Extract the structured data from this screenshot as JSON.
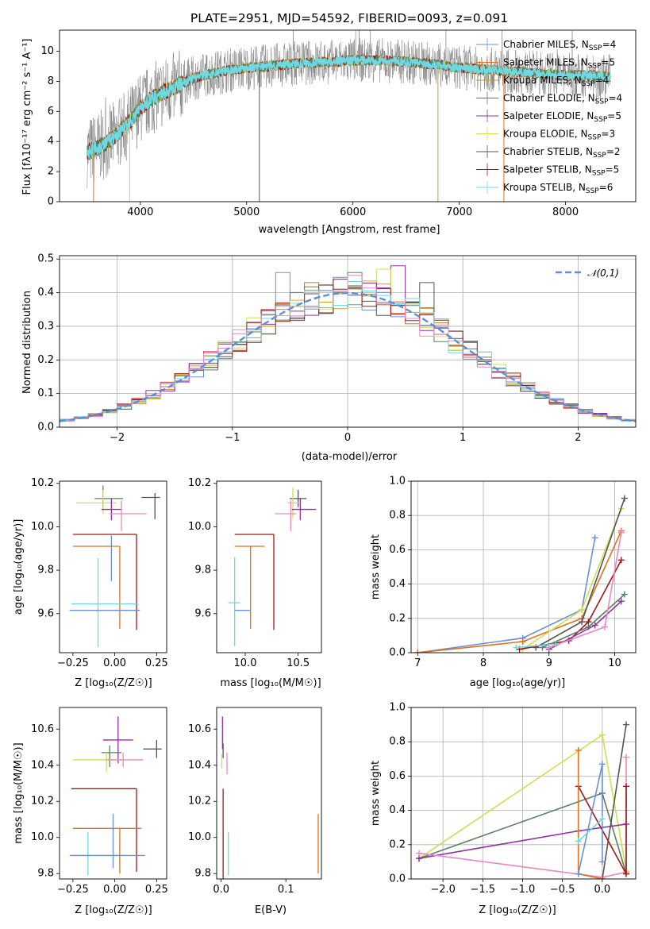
{
  "colors": {
    "Chabrier MILES": "#6b8fd4",
    "Salpeter MILES": "#e0701e",
    "Kroupa MILES": "#c8a020",
    "Chabrier ELODIE": "#5a8060",
    "Salpeter ELODIE": "#9030a8",
    "Kroupa ELODIE": "#cce050",
    "Chabrier STELIB": "#555555",
    "Salpeter STELIB": "#a01818",
    "Kroupa STELIB": "#70d8e0",
    "Pink": "#e888c0",
    "Gaussian": "#5b8fdb"
  },
  "chart_data": [
    {
      "id": "spectrum",
      "type": "line",
      "title": "PLATE=2951, MJD=54592, FIBERID=0093, z=0.091",
      "xlabel": "wavelength [Angstrom, rest frame]",
      "ylabel": "Flux [fλ10⁻¹⁷ erg cm⁻² s⁻¹ A⁻¹]",
      "xlim": [
        3240,
        8660
      ],
      "ylim": [
        0,
        11.4
      ],
      "xticks": [
        "4000",
        "5000",
        "6000",
        "7000",
        "8000"
      ],
      "yticks": [
        "0",
        "2",
        "4",
        "6",
        "8",
        "10"
      ],
      "continuum": {
        "x": [
          3500,
          3600,
          3700,
          3800,
          3900,
          4000,
          4100,
          4200,
          4300,
          4400,
          4500,
          4600,
          4800,
          5000,
          5200,
          5500,
          5800,
          6000,
          6200,
          6500,
          6800,
          7000,
          7200,
          7400,
          7600,
          7800,
          8000,
          8200,
          8400
        ],
        "y": [
          3.3,
          3.6,
          4.0,
          4.6,
          5.3,
          6.2,
          6.8,
          7.2,
          7.5,
          7.9,
          8.2,
          8.4,
          8.7,
          8.9,
          9.0,
          9.2,
          9.3,
          9.4,
          9.4,
          9.3,
          9.1,
          8.9,
          8.8,
          8.7,
          8.6,
          8.5,
          8.4,
          8.4,
          8.3
        ]
      },
      "legend_position": "right",
      "legend": [
        {
          "name": "Chabrier MILES, N_SSP=4",
          "label": "Chabrier MILES, N",
          "sub": "SSP",
          "tail": "=4",
          "color": "Chabrier MILES"
        },
        {
          "name": "Salpeter MILES, N_SSP=5",
          "label": "Salpeter MILES, N",
          "sub": "SSP",
          "tail": "=5",
          "color": "Salpeter MILES"
        },
        {
          "name": "Kroupa MILES, N_SSP=4",
          "label": "Kroupa MILES, N",
          "sub": "SSP",
          "tail": "=4",
          "color": "Kroupa MILES"
        },
        {
          "name": "Chabrier ELODIE, N_SSP=4",
          "label": "Chabrier ELODIE, N",
          "sub": "SSP",
          "tail": "=4",
          "color": "Chabrier ELODIE"
        },
        {
          "name": "Salpeter ELODIE, N_SSP=5",
          "label": "Salpeter ELODIE, N",
          "sub": "SSP",
          "tail": "=5",
          "color": "Salpeter ELODIE"
        },
        {
          "name": "Kroupa ELODIE, N_SSP=3",
          "label": "Kroupa ELODIE, N",
          "sub": "SSP",
          "tail": "=3",
          "color": "Kroupa ELODIE"
        },
        {
          "name": "Chabrier STELIB, N_SSP=2",
          "label": "Chabrier STELIB, N",
          "sub": "SSP",
          "tail": "=2",
          "color": "Chabrier STELIB"
        },
        {
          "name": "Salpeter STELIB, N_SSP=5",
          "label": "Salpeter STELIB, N",
          "sub": "SSP",
          "tail": "=5",
          "color": "Salpeter STELIB"
        },
        {
          "name": "Kroupa STELIB, N_SSP=6",
          "label": "Kroupa STELIB, N",
          "sub": "SSP",
          "tail": "=6",
          "color": "Kroupa STELIB"
        }
      ]
    },
    {
      "id": "residuals",
      "type": "bar",
      "xlabel": "(data-model)/error",
      "ylabel": "Normed distribution",
      "xlim": [
        -2.5,
        2.5
      ],
      "ylim": [
        0,
        0.51
      ],
      "xticks": [
        "−2",
        "−1",
        "0",
        "1",
        "2"
      ],
      "yticks": [
        "0.0",
        "0.1",
        "0.2",
        "0.3",
        "0.4",
        "0.5"
      ],
      "grid": true,
      "legend": [
        {
          "name": "𝒩(0,1)",
          "color": "Gaussian",
          "style": "dashed"
        }
      ],
      "bin_width": 0.125,
      "bin_start": -2.5,
      "peak_values": [
        0.46,
        0.43,
        0.41,
        0.46,
        0.48,
        0.47,
        0.43
      ],
      "peak_bins": [
        -0.625,
        -0.375,
        -0.125,
        0.0,
        0.375,
        0.25,
        0.625
      ]
    },
    {
      "id": "age-vs-Z",
      "type": "scatter",
      "xlabel": "Z [log₁₀(Z/Z☉)]",
      "ylabel": "age  [log₁₀(age/yr)]",
      "xlim": [
        -0.33,
        0.31
      ],
      "ylim": [
        9.42,
        10.21
      ],
      "xticks": [
        "−0.25",
        "0.00",
        "0.25"
      ],
      "yticks": [
        "9.6",
        "9.8",
        "10.0",
        "10.2"
      ],
      "points": [
        {
          "color": "Chabrier STELIB",
          "x": 0.24,
          "y": 10.135,
          "xerr": [
            0.08,
            0.03
          ],
          "yerr": [
            0.1,
            0.02
          ]
        },
        {
          "color": "Chabrier ELODIE",
          "x": -0.07,
          "y": 10.13,
          "xerr": [
            0.05,
            0.12
          ],
          "yerr": [
            0.05,
            0.06
          ]
        },
        {
          "color": "Kroupa ELODIE",
          "x": -0.07,
          "y": 10.11,
          "xerr": [
            0.16,
            0.08
          ],
          "yerr": [
            0.05,
            0.06
          ]
        },
        {
          "color": "Salpeter ELODIE",
          "x": -0.02,
          "y": 10.08,
          "xerr": [
            0.06,
            0.06
          ],
          "yerr": [
            0.05,
            0.05
          ]
        },
        {
          "color": "Pink",
          "x": 0.04,
          "y": 10.06,
          "xerr": [
            0.07,
            0.15
          ],
          "yerr": [
            0.08,
            0.06
          ]
        },
        {
          "color": "Salpeter STELIB",
          "x": 0.13,
          "y": 9.965,
          "xerr": [
            0.38,
            0.0
          ],
          "yerr": [
            0.44,
            0.0
          ]
        },
        {
          "color": "Salpeter MILES",
          "x": 0.03,
          "y": 9.91,
          "xerr": [
            0.28,
            0.0
          ],
          "yerr": [
            0.38,
            0.0
          ]
        },
        {
          "color": "Chabrier MILES",
          "x": -0.02,
          "y": 9.75,
          "xerr": [
            0.0,
            0.0
          ],
          "yerr": [
            0.0,
            0.21
          ]
        },
        {
          "color": "Kroupa STELIB",
          "x": -0.1,
          "y": 9.645,
          "xerr": [
            0.16,
            0.24
          ],
          "yerr": [
            0.2,
            0.21
          ]
        },
        {
          "color": "Chabrier MILES",
          "x": -0.05,
          "y": 9.615,
          "xerr": [
            0.22,
            0.2
          ],
          "yerr": [
            0.0,
            0.0
          ]
        }
      ]
    },
    {
      "id": "age-vs-mass",
      "type": "scatter",
      "xlabel": "mass [log₁₀(M/M☉)]",
      "ylabel": "",
      "xlim": [
        9.73,
        10.72
      ],
      "ylim": [
        9.42,
        10.21
      ],
      "xticks": [
        "10.0",
        "10.5"
      ],
      "yticks": [
        "9.6",
        "9.8",
        "10.0",
        "10.2"
      ],
      "points": [
        {
          "color": "Chabrier STELIB",
          "x": 10.5,
          "y": 10.13,
          "xerr": [
            0.08,
            0.08
          ],
          "yerr": [
            0.04,
            0.04
          ]
        },
        {
          "color": "Kroupa ELODIE",
          "x": 10.45,
          "y": 10.11,
          "xerr": [
            0.05,
            0.05
          ],
          "yerr": [
            0.07,
            0.07
          ]
        },
        {
          "color": "Salpeter ELODIE",
          "x": 10.52,
          "y": 10.08,
          "xerr": [
            0.08,
            0.15
          ],
          "yerr": [
            0.05,
            0.05
          ]
        },
        {
          "color": "Pink",
          "x": 10.43,
          "y": 10.06,
          "xerr": [
            0.15,
            0.05
          ],
          "yerr": [
            0.08,
            0.06
          ]
        },
        {
          "color": "Salpeter STELIB",
          "x": 10.27,
          "y": 9.965,
          "xerr": [
            0.37,
            0.0
          ],
          "yerr": [
            0.44,
            0.0
          ]
        },
        {
          "color": "Salpeter MILES",
          "x": 10.05,
          "y": 9.91,
          "xerr": [
            0.15,
            0.13
          ],
          "yerr": [
            0.38,
            0.0
          ]
        },
        {
          "color": "Kroupa STELIB",
          "x": 9.9,
          "y": 9.65,
          "xerr": [
            0.06,
            0.05
          ],
          "yerr": [
            0.2,
            0.21
          ]
        },
        {
          "color": "Chabrier MILES",
          "x": 9.95,
          "y": 9.615,
          "xerr": [
            0.05,
            0.1
          ],
          "yerr": [
            0.0,
            0.0
          ]
        }
      ]
    },
    {
      "id": "massweight-vs-age",
      "type": "line",
      "xlabel": "age  [log₁₀(age/yr)]",
      "ylabel": "mass weight",
      "xlim": [
        6.9,
        10.32
      ],
      "ylim": [
        0,
        1.0
      ],
      "xticks": [
        "7",
        "8",
        "9",
        "10"
      ],
      "yticks": [
        "0.0",
        "0.2",
        "0.4",
        "0.6",
        "0.8",
        "1.0"
      ],
      "grid": true,
      "series": [
        {
          "color": "Chabrier MILES",
          "x": [
            7.0,
            8.6,
            9.5,
            9.7
          ],
          "y": [
            0.0,
            0.085,
            0.25,
            0.67
          ]
        },
        {
          "color": "Salpeter MILES",
          "x": [
            7.0,
            8.6,
            9.5,
            10.1
          ],
          "y": [
            0.0,
            0.065,
            0.2,
            0.71
          ]
        },
        {
          "color": "Kroupa ELODIE",
          "x": [
            8.6,
            9.5,
            10.1
          ],
          "y": [
            0.02,
            0.25,
            0.84
          ]
        },
        {
          "color": "Chabrier STELIB",
          "x": [
            8.8,
            9.5,
            10.15
          ],
          "y": [
            0.03,
            0.18,
            0.9
          ]
        },
        {
          "color": "Salpeter STELIB",
          "x": [
            8.55,
            9.3,
            9.6,
            10.1
          ],
          "y": [
            0.02,
            0.07,
            0.18,
            0.54
          ]
        },
        {
          "color": "Chabrier ELODIE",
          "x": [
            8.9,
            9.6,
            10.15
          ],
          "y": [
            0.03,
            0.15,
            0.34
          ]
        },
        {
          "color": "Salpeter ELODIE",
          "x": [
            9.0,
            9.7,
            10.1
          ],
          "y": [
            0.02,
            0.16,
            0.3
          ]
        },
        {
          "color": "Pink",
          "x": [
            9.0,
            9.85,
            10.1
          ],
          "y": [
            0.03,
            0.15,
            0.7
          ]
        },
        {
          "color": "Kroupa STELIB",
          "x": [
            8.5,
            9.1
          ],
          "y": [
            0.03,
            0.05
          ]
        }
      ]
    },
    {
      "id": "mass-vs-Z",
      "type": "scatter",
      "xlabel": "Z [log₁₀(Z/Z☉)]",
      "ylabel": "mass [log₁₀(M/M☉)]",
      "xlim": [
        -0.33,
        0.31
      ],
      "ylim": [
        9.77,
        10.72
      ],
      "xticks": [
        "−0.25",
        "0.00",
        "0.25"
      ],
      "yticks": [
        "9.8",
        "10.0",
        "10.2",
        "10.4",
        "10.6"
      ],
      "points": [
        {
          "color": "Chabrier STELIB",
          "x": 0.25,
          "y": 10.49,
          "xerr": [
            0.08,
            0.03
          ],
          "yerr": [
            0.05,
            0.05
          ]
        },
        {
          "color": "Salpeter ELODIE",
          "x": 0.02,
          "y": 10.54,
          "xerr": [
            0.09,
            0.09
          ],
          "yerr": [
            0.13,
            0.13
          ]
        },
        {
          "color": "Chabrier ELODIE",
          "x": -0.03,
          "y": 10.47,
          "xerr": [
            0.05,
            0.07
          ],
          "yerr": [
            0.08,
            0.04
          ]
        },
        {
          "color": "Kroupa ELODIE",
          "x": -0.05,
          "y": 10.43,
          "xerr": [
            0.2,
            0.1
          ],
          "yerr": [
            0.07,
            0.04
          ]
        },
        {
          "color": "Pink",
          "x": 0.05,
          "y": 10.43,
          "xerr": [
            0.1,
            0.12
          ],
          "yerr": [
            0.04,
            0.04
          ]
        },
        {
          "color": "Salpeter STELIB",
          "x": 0.13,
          "y": 10.27,
          "xerr": [
            0.39,
            0.0
          ],
          "yerr": [
            0.46,
            0.0
          ]
        },
        {
          "color": "Salpeter MILES",
          "x": 0.03,
          "y": 10.05,
          "xerr": [
            0.28,
            0.13
          ],
          "yerr": [
            0.25,
            0.0
          ]
        },
        {
          "color": "Chabrier MILES",
          "x": -0.01,
          "y": 9.93,
          "xerr": [
            0.0,
            0.0
          ],
          "yerr": [
            0.1,
            0.2
          ]
        },
        {
          "color": "Kroupa STELIB",
          "x": -0.16,
          "y": 9.9,
          "xerr": [
            0.1,
            0.22
          ],
          "yerr": [
            0.11,
            0.13
          ]
        },
        {
          "color": "Chabrier MILES",
          "x": -0.1,
          "y": 9.9,
          "xerr": [
            0.17,
            0.28
          ],
          "yerr": [
            0.0,
            0.0
          ]
        }
      ]
    },
    {
      "id": "mass-vs-EBV",
      "type": "scatter",
      "xlabel": "E(B-V)",
      "ylabel": "",
      "xlim": [
        -0.007,
        0.155
      ],
      "ylim": [
        9.77,
        10.72
      ],
      "xticks": [
        "0.0",
        "0.1"
      ],
      "yticks": [
        "9.8",
        "10.0",
        "10.2",
        "10.4",
        "10.6"
      ],
      "points": [
        {
          "color": "Salpeter ELODIE",
          "x": 0.002,
          "y": 10.58,
          "xerr": [
            0,
            0
          ],
          "yerr": [
            0.09,
            0.09
          ]
        },
        {
          "color": "Chabrier STELIB",
          "x": 0.003,
          "y": 10.48,
          "xerr": [
            0,
            0
          ],
          "yerr": [
            0.04,
            0.04
          ]
        },
        {
          "color": "Kroupa ELODIE",
          "x": 0.001,
          "y": 10.42,
          "xerr": [
            0,
            0
          ],
          "yerr": [
            0.04,
            0.04
          ]
        },
        {
          "color": "Pink",
          "x": 0.009,
          "y": 10.41,
          "xerr": [
            0,
            0
          ],
          "yerr": [
            0.06,
            0.06
          ]
        },
        {
          "color": "Salpeter STELIB",
          "x": 0.003,
          "y": 10.0,
          "xerr": [
            0,
            0
          ],
          "yerr": [
            0.27,
            0.27
          ]
        },
        {
          "color": "Kroupa STELIB",
          "x": 0.011,
          "y": 9.9,
          "xerr": [
            0,
            0
          ],
          "yerr": [
            0.11,
            0.13
          ]
        },
        {
          "color": "Salpeter MILES",
          "x": 0.15,
          "y": 10.0,
          "xerr": [
            0,
            0
          ],
          "yerr": [
            0.2,
            0.13
          ]
        }
      ]
    },
    {
      "id": "massweight-vs-Z",
      "type": "line",
      "xlabel": "Z [log₁₀(Z/Z☉)]",
      "ylabel": "mass weight",
      "xlim": [
        -2.4,
        0.42
      ],
      "ylim": [
        0,
        1.0
      ],
      "xticks": [
        "−2.0",
        "−1.5",
        "−1.0",
        "−0.5",
        "0.0"
      ],
      "yticks": [
        "0.0",
        "0.2",
        "0.4",
        "0.6",
        "0.8",
        "1.0"
      ],
      "grid": true,
      "series": [
        {
          "color": "Kroupa ELODIE",
          "x": [
            -2.3,
            0.0,
            0.3
          ],
          "y": [
            0.12,
            0.84,
            0.05
          ]
        },
        {
          "color": "Chabrier ELODIE",
          "x": [
            -2.3,
            0.0,
            0.3
          ],
          "y": [
            0.12,
            0.5,
            0.03
          ]
        },
        {
          "color": "Salpeter ELODIE",
          "x": [
            -2.3,
            -0.3,
            0.3
          ],
          "y": [
            0.12,
            0.28,
            0.32
          ]
        },
        {
          "color": "Pink",
          "x": [
            -2.3,
            0.0,
            0.3,
            0.3
          ],
          "y": [
            0.15,
            0.01,
            0.04,
            0.71
          ]
        },
        {
          "color": "Chabrier STELIB",
          "x": [
            0.0,
            0.3
          ],
          "y": [
            0.0,
            0.9
          ]
        },
        {
          "color": "Salpeter STELIB",
          "x": [
            -0.3,
            0.3,
            0.3
          ],
          "y": [
            0.54,
            0.03,
            0.54
          ]
        },
        {
          "color": "Salpeter MILES",
          "x": [
            -0.3,
            -0.3,
            0.0
          ],
          "y": [
            0.75,
            0.03,
            0.0
          ]
        },
        {
          "color": "Chabrier MILES",
          "x": [
            -0.3,
            0.0,
            0.0
          ],
          "y": [
            0.03,
            0.67,
            0.1
          ]
        },
        {
          "color": "Kroupa STELIB",
          "x": [
            -0.3,
            0.0
          ],
          "y": [
            0.22,
            0.35
          ]
        }
      ]
    }
  ]
}
